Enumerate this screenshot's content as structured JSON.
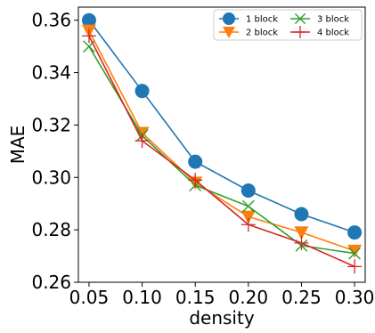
{
  "chart_data": {
    "type": "line",
    "x": [
      0.05,
      0.1,
      0.15,
      0.2,
      0.25,
      0.3
    ],
    "x_tick_labels": [
      "0.05",
      "0.10",
      "0.15",
      "0.20",
      "0.25",
      "0.30"
    ],
    "y_ticks": [
      0.26,
      0.28,
      0.3,
      0.32,
      0.34,
      0.36
    ],
    "y_tick_labels": [
      "0.26",
      "0.28",
      "0.30",
      "0.32",
      "0.34",
      "0.36"
    ],
    "xlabel": "density",
    "ylabel": "MAE",
    "xlim": [
      0.04,
      0.31
    ],
    "ylim": [
      0.26,
      0.365
    ],
    "grid": false,
    "legend_position": "top-right",
    "legend_columns": 2,
    "series": [
      {
        "name": "1 block",
        "color": "#1f77b4",
        "marker": "circle",
        "values": [
          0.36,
          0.333,
          0.306,
          0.295,
          0.286,
          0.279
        ]
      },
      {
        "name": "2 block",
        "color": "#ff7f0e",
        "marker": "triangle-down",
        "values": [
          0.356,
          0.317,
          0.298,
          0.285,
          0.279,
          0.272
        ]
      },
      {
        "name": "3 block",
        "color": "#2ca02c",
        "marker": "x",
        "values": [
          0.35,
          0.316,
          0.297,
          0.289,
          0.274,
          0.271
        ]
      },
      {
        "name": "4 block",
        "color": "#d62728",
        "marker": "plus",
        "values": [
          0.354,
          0.314,
          0.299,
          0.282,
          0.275,
          0.266
        ]
      }
    ]
  }
}
